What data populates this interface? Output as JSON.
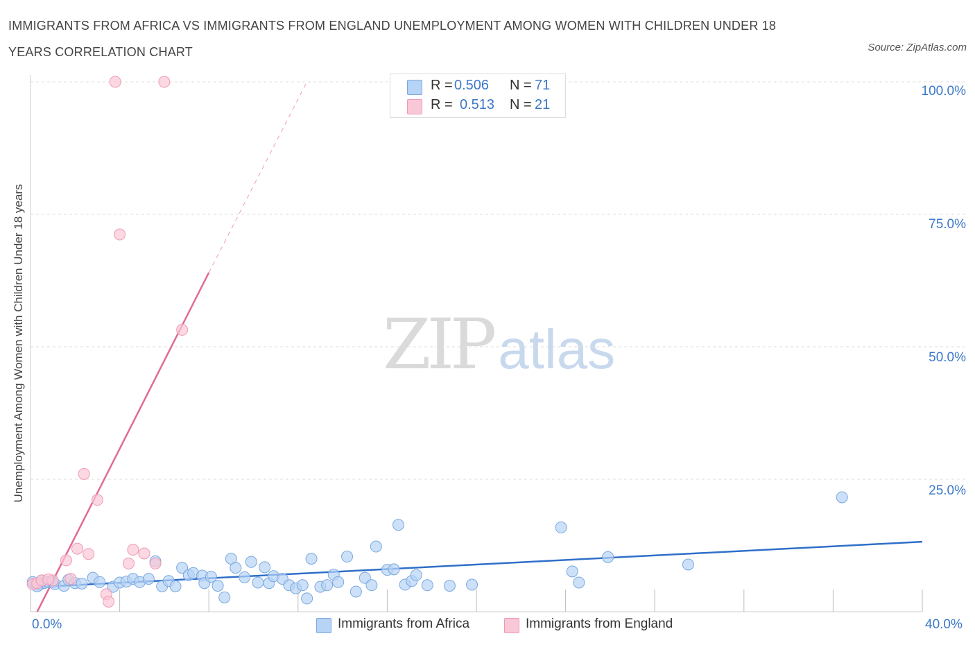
{
  "title": "IMMIGRANTS FROM AFRICA VS IMMIGRANTS FROM ENGLAND UNEMPLOYMENT AMONG WOMEN WITH CHILDREN UNDER 18 YEARS CORRELATION CHART",
  "source": "Source: ZipAtlas.com",
  "watermark": {
    "zip": "ZIP",
    "atlas": "atlas"
  },
  "legend_top": [
    {
      "r_label": "R =",
      "r_value": "0.506",
      "n_label": "N =",
      "n_value": "71"
    },
    {
      "r_label": "R =",
      "r_value": "0.513",
      "n_label": "N =",
      "n_value": "21"
    }
  ],
  "legend_bottom": [
    "Immigrants from Africa",
    "Immigrants from England"
  ],
  "colors": {
    "africa_fill": "#b7d3f5",
    "africa_stroke": "#7aa8e0",
    "africa_line": "#2f6fc9",
    "england_fill": "#f9c8d6",
    "england_stroke": "#ef9ab4",
    "england_line": "#e06a95",
    "tick_text": "#3b78c7",
    "grid": "#dddddd"
  },
  "chart_data": {
    "type": "scatter",
    "title": "IMMIGRANTS FROM AFRICA VS IMMIGRANTS FROM ENGLAND UNEMPLOYMENT AMONG WOMEN WITH CHILDREN UNDER 18 YEARS CORRELATION CHART",
    "xlabel": "",
    "ylabel": "Unemployment Among Women with Children Under 18 years",
    "xlim": [
      0,
      40
    ],
    "ylim": [
      0,
      100
    ],
    "x_tick_labels": [
      "0.0%",
      "40.0%"
    ],
    "y_tick_labels": [
      "100.0%",
      "75.0%",
      "50.0%",
      "25.0%"
    ],
    "y_ticks": [
      100,
      75,
      50,
      25
    ],
    "grid": true,
    "legend_position": "bottom",
    "series": [
      {
        "name": "Immigrants from Africa",
        "R": 0.506,
        "N": 71,
        "trend": {
          "x": [
            0,
            40
          ],
          "y": [
            4.6,
            13.2
          ],
          "dashed_extension": false
        },
        "points": [
          [
            0.2,
            5.3
          ],
          [
            0.4,
            5.1
          ],
          [
            0.6,
            5.4
          ],
          [
            0.8,
            5.6
          ],
          [
            1.0,
            5.6
          ],
          [
            1.1,
            5.2
          ],
          [
            1.5,
            4.9
          ],
          [
            1.7,
            6.0
          ],
          [
            2.0,
            5.4
          ],
          [
            2.3,
            5.3
          ],
          [
            2.8,
            6.4
          ],
          [
            3.1,
            5.6
          ],
          [
            3.7,
            4.7
          ],
          [
            4.0,
            5.5
          ],
          [
            4.3,
            5.7
          ],
          [
            4.6,
            6.2
          ],
          [
            4.9,
            5.6
          ],
          [
            5.3,
            6.2
          ],
          [
            5.6,
            9.5
          ],
          [
            5.9,
            4.8
          ],
          [
            6.2,
            5.8
          ],
          [
            6.5,
            4.8
          ],
          [
            6.8,
            8.3
          ],
          [
            7.1,
            6.9
          ],
          [
            7.3,
            7.3
          ],
          [
            7.7,
            6.8
          ],
          [
            7.8,
            5.4
          ],
          [
            8.1,
            6.6
          ],
          [
            8.4,
            4.9
          ],
          [
            8.7,
            2.7
          ],
          [
            9.0,
            10.0
          ],
          [
            9.2,
            8.3
          ],
          [
            9.6,
            6.5
          ],
          [
            9.9,
            9.4
          ],
          [
            10.2,
            5.5
          ],
          [
            10.5,
            8.4
          ],
          [
            10.7,
            5.4
          ],
          [
            10.9,
            6.7
          ],
          [
            11.3,
            6.2
          ],
          [
            11.6,
            5.0
          ],
          [
            11.9,
            4.4
          ],
          [
            12.2,
            5.0
          ],
          [
            12.4,
            2.5
          ],
          [
            12.6,
            10.0
          ],
          [
            13.0,
            4.7
          ],
          [
            13.3,
            5.0
          ],
          [
            13.6,
            7.0
          ],
          [
            13.8,
            5.6
          ],
          [
            14.2,
            10.4
          ],
          [
            14.6,
            3.8
          ],
          [
            15.0,
            6.4
          ],
          [
            15.3,
            5.0
          ],
          [
            15.5,
            12.3
          ],
          [
            16.0,
            7.9
          ],
          [
            16.3,
            8.0
          ],
          [
            16.5,
            16.4
          ],
          [
            16.8,
            5.1
          ],
          [
            17.1,
            5.8
          ],
          [
            17.3,
            6.9
          ],
          [
            17.8,
            5.0
          ],
          [
            18.8,
            4.9
          ],
          [
            19.8,
            5.1
          ],
          [
            23.8,
            15.9
          ],
          [
            24.3,
            7.6
          ],
          [
            24.6,
            5.5
          ],
          [
            25.9,
            10.3
          ],
          [
            29.5,
            8.9
          ],
          [
            36.4,
            21.6
          ],
          [
            0.1,
            5.6
          ],
          [
            0.3,
            4.8
          ],
          [
            0.5,
            5.9
          ]
        ]
      },
      {
        "name": "Immigrants from England",
        "R": 0.513,
        "N": 21,
        "trend": {
          "x": [
            0.3,
            8.0
          ],
          "y": [
            0,
            64
          ],
          "dashed_extension": {
            "x": [
              8.0,
              12.4
            ],
            "y": [
              64,
              100
            ]
          }
        },
        "points": [
          [
            0.1,
            5.2
          ],
          [
            0.3,
            5.4
          ],
          [
            0.5,
            5.9
          ],
          [
            1.0,
            5.9
          ],
          [
            1.6,
            9.7
          ],
          [
            1.8,
            6.2
          ],
          [
            2.1,
            11.9
          ],
          [
            2.4,
            26.0
          ],
          [
            2.6,
            10.9
          ],
          [
            3.0,
            21.1
          ],
          [
            3.4,
            3.3
          ],
          [
            3.5,
            1.9
          ],
          [
            3.8,
            100.0
          ],
          [
            4.0,
            71.2
          ],
          [
            4.4,
            9.1
          ],
          [
            4.6,
            11.7
          ],
          [
            5.1,
            11.0
          ],
          [
            5.6,
            9.1
          ],
          [
            6.0,
            100.0
          ],
          [
            6.8,
            53.2
          ],
          [
            0.8,
            6.1
          ]
        ]
      }
    ]
  }
}
